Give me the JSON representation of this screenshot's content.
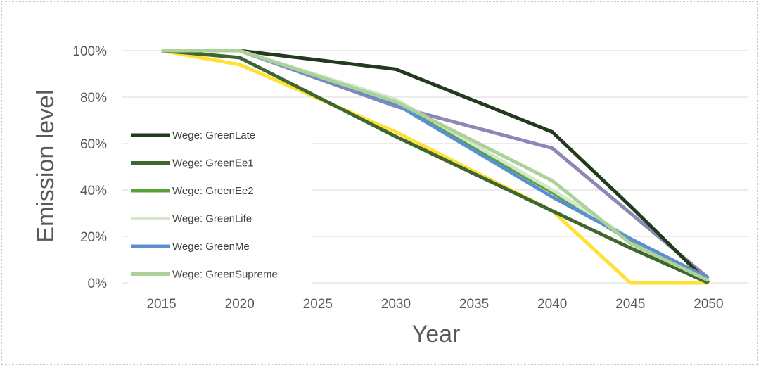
{
  "chart_data": {
    "type": "line",
    "title": "",
    "xlabel": "Year",
    "ylabel": "Emission level",
    "x": [
      2015,
      2020,
      2030,
      2040,
      2045,
      2050
    ],
    "x_ticks": [
      "2015",
      "2020",
      "2025",
      "2030",
      "2035",
      "2040",
      "2045",
      "2050"
    ],
    "y_ticks": [
      "0%",
      "20%",
      "40%",
      "60%",
      "80%",
      "100%"
    ],
    "xlim": [
      2012.5,
      2052.5
    ],
    "ylim": [
      0,
      100
    ],
    "y_unit": "%",
    "grid": "horizontal",
    "legend_position": "left-inside",
    "series": [
      {
        "name": "",
        "color": "#ffe135",
        "values": [
          100,
          94,
          65,
          31,
          0,
          0
        ]
      },
      {
        "name": "",
        "color": "#8e86b6",
        "values": [
          100,
          100,
          76,
          58,
          30,
          2
        ]
      },
      {
        "name": "Wege: GreenLate",
        "color": "#243a1e",
        "values": [
          100,
          100,
          92,
          65,
          33,
          0
        ]
      },
      {
        "name": "Wege: GreenEe1",
        "color": "#3f6530",
        "values": [
          100,
          97,
          63,
          31,
          15,
          0
        ]
      },
      {
        "name": "Wege: GreenEe2",
        "color": "#5aa13b",
        "values": [
          100,
          100,
          78,
          39,
          18,
          1
        ]
      },
      {
        "name": "Wege: GreenLife",
        "color": "#d3e8c9",
        "values": [
          100,
          100,
          79,
          40,
          19,
          1
        ]
      },
      {
        "name": "Wege: GreenMe",
        "color": "#5b8fcd",
        "values": [
          100,
          100,
          77,
          37,
          19,
          2
        ]
      },
      {
        "name": "Wege: GreenSupreme",
        "color": "#aed19a",
        "values": [
          100,
          100,
          78,
          44,
          17,
          1
        ]
      }
    ]
  }
}
